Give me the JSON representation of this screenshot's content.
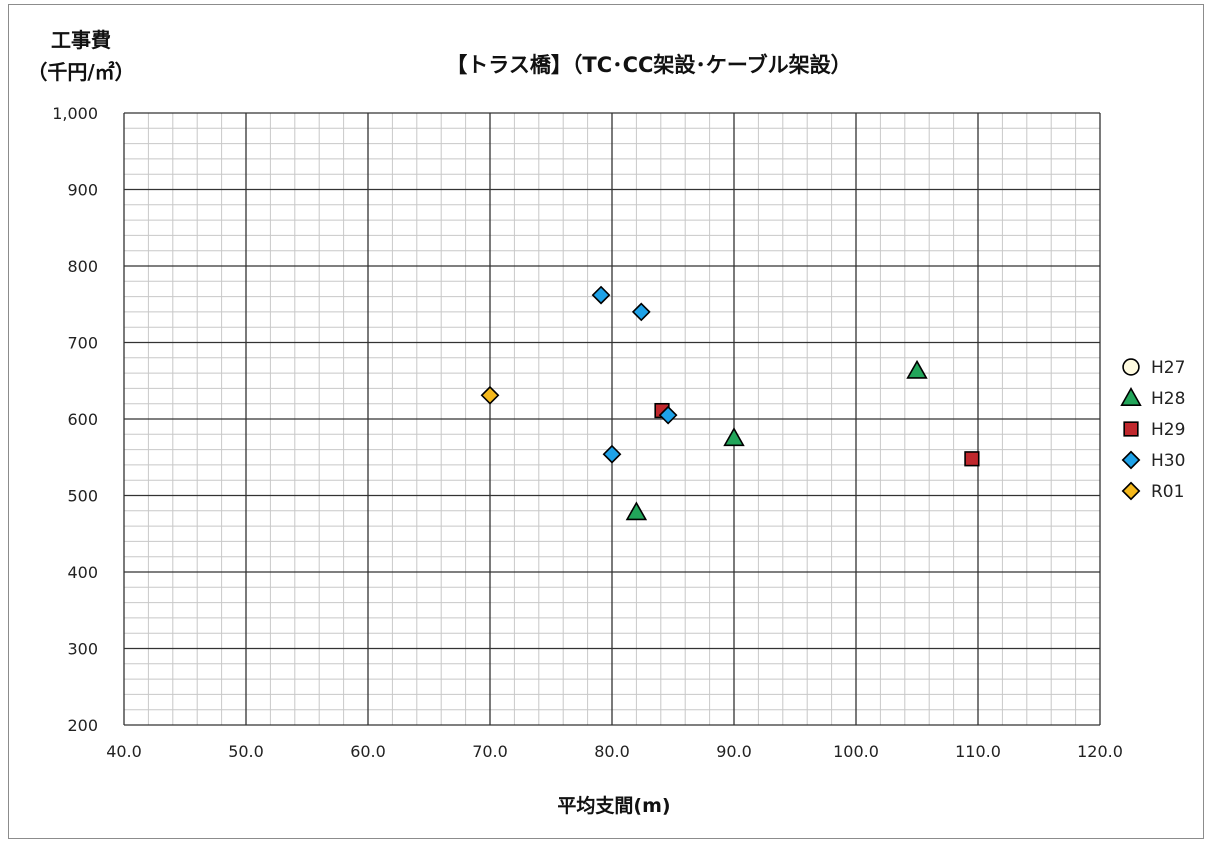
{
  "chart_data": {
    "type": "scatter",
    "title": "【トラス橋】（TC･CC架設･ケーブル架設）",
    "ylabel_line1": "工事費",
    "ylabel_line2": "（千円/㎡）",
    "xlabel": "平均支間(m)",
    "xlim": [
      40,
      120
    ],
    "ylim": [
      200,
      1000
    ],
    "x_ticks": [
      "40.0",
      "50.0",
      "60.0",
      "70.0",
      "80.0",
      "90.0",
      "100.0",
      "110.0",
      "120.0"
    ],
    "y_ticks": [
      "200",
      "300",
      "400",
      "500",
      "600",
      "700",
      "800",
      "900",
      "1,000"
    ],
    "grid": true,
    "legend_position": "right",
    "series": [
      {
        "name": "H27",
        "marker": "circle",
        "color": "#fffbe0",
        "points": []
      },
      {
        "name": "H28",
        "marker": "triangle",
        "color": "#22a55a",
        "points": [
          [
            82.0,
            478
          ],
          [
            90.0,
            575
          ],
          [
            105.0,
            663
          ]
        ]
      },
      {
        "name": "H29",
        "marker": "square",
        "color": "#c0282d",
        "points": [
          [
            84.1,
            611
          ],
          [
            109.5,
            548
          ]
        ]
      },
      {
        "name": "H30",
        "marker": "diamond",
        "color": "#1ea2e8",
        "points": [
          [
            79.1,
            762
          ],
          [
            82.4,
            740
          ],
          [
            84.6,
            605
          ],
          [
            80.0,
            554
          ]
        ]
      },
      {
        "name": "R01",
        "marker": "diamond",
        "color": "#f4b81c",
        "points": [
          [
            70.0,
            631
          ]
        ]
      }
    ]
  }
}
